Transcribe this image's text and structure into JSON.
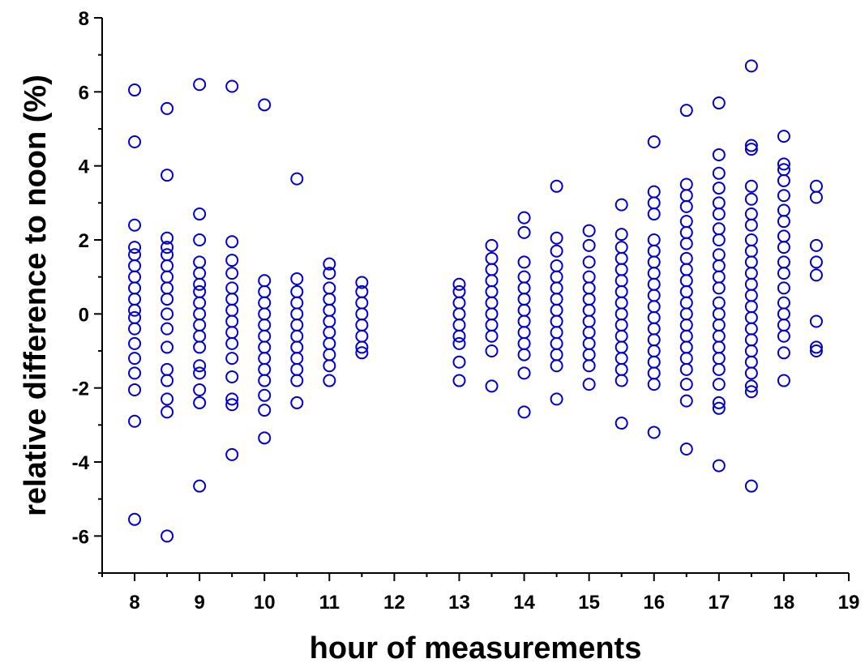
{
  "chart_data": {
    "type": "scatter",
    "title": "",
    "xlabel": "hour of measurements",
    "ylabel": "relative difference to noon (%)",
    "xlim": [
      7.5,
      19
    ],
    "ylim": [
      -7,
      8
    ],
    "x_ticks": [
      8,
      9,
      10,
      11,
      12,
      13,
      14,
      15,
      16,
      17,
      18,
      19
    ],
    "y_ticks": [
      -6,
      -4,
      -2,
      0,
      2,
      4,
      6,
      8
    ],
    "grid": false,
    "legend": "none",
    "marker": "open-circle",
    "color": "#0000CC",
    "series": [
      {
        "points": [
          [
            8,
            6.05
          ],
          [
            8,
            4.65
          ],
          [
            8,
            2.4
          ],
          [
            8,
            1.8
          ],
          [
            8,
            1.6
          ],
          [
            8,
            1.3
          ],
          [
            8,
            1.0
          ],
          [
            8,
            0.7
          ],
          [
            8,
            0.4
          ],
          [
            8,
            0.1
          ],
          [
            8,
            -0.1
          ],
          [
            8,
            -0.4
          ],
          [
            8,
            -0.8
          ],
          [
            8,
            -1.2
          ],
          [
            8,
            -1.6
          ],
          [
            8,
            -2.05
          ],
          [
            8,
            -2.9
          ],
          [
            8,
            -5.55
          ],
          [
            8.5,
            5.55
          ],
          [
            8.5,
            3.75
          ],
          [
            8.5,
            2.05
          ],
          [
            8.5,
            1.8
          ],
          [
            8.5,
            1.6
          ],
          [
            8.5,
            1.3
          ],
          [
            8.5,
            1.0
          ],
          [
            8.5,
            0.7
          ],
          [
            8.5,
            0.4
          ],
          [
            8.5,
            0.0
          ],
          [
            8.5,
            -0.4
          ],
          [
            8.5,
            -0.9
          ],
          [
            8.5,
            -1.5
          ],
          [
            8.5,
            -1.8
          ],
          [
            8.5,
            -2.3
          ],
          [
            8.5,
            -2.65
          ],
          [
            8.5,
            -6.0
          ],
          [
            9,
            6.2
          ],
          [
            9,
            2.7
          ],
          [
            9,
            2.0
          ],
          [
            9,
            1.4
          ],
          [
            9,
            1.1
          ],
          [
            9,
            0.8
          ],
          [
            9,
            0.6
          ],
          [
            9,
            0.3
          ],
          [
            9,
            0.0
          ],
          [
            9,
            -0.3
          ],
          [
            9,
            -0.6
          ],
          [
            9,
            -0.9
          ],
          [
            9,
            -1.4
          ],
          [
            9,
            -1.6
          ],
          [
            9,
            -2.05
          ],
          [
            9,
            -2.4
          ],
          [
            9,
            -4.65
          ],
          [
            9.5,
            6.15
          ],
          [
            9.5,
            1.95
          ],
          [
            9.5,
            1.45
          ],
          [
            9.5,
            1.1
          ],
          [
            9.5,
            0.7
          ],
          [
            9.5,
            0.4
          ],
          [
            9.5,
            0.1
          ],
          [
            9.5,
            -0.2
          ],
          [
            9.5,
            -0.5
          ],
          [
            9.5,
            -0.8
          ],
          [
            9.5,
            -1.2
          ],
          [
            9.5,
            -1.7
          ],
          [
            9.5,
            -2.3
          ],
          [
            9.5,
            -2.45
          ],
          [
            9.5,
            -3.8
          ],
          [
            10,
            5.65
          ],
          [
            10,
            0.9
          ],
          [
            10,
            0.6
          ],
          [
            10,
            0.3
          ],
          [
            10,
            0.0
          ],
          [
            10,
            -0.3
          ],
          [
            10,
            -0.6
          ],
          [
            10,
            -0.9
          ],
          [
            10,
            -1.2
          ],
          [
            10,
            -1.5
          ],
          [
            10,
            -1.8
          ],
          [
            10,
            -2.2
          ],
          [
            10,
            -2.6
          ],
          [
            10,
            -3.35
          ],
          [
            10.5,
            3.65
          ],
          [
            10.5,
            0.95
          ],
          [
            10.5,
            0.6
          ],
          [
            10.5,
            0.3
          ],
          [
            10.5,
            0.0
          ],
          [
            10.5,
            -0.3
          ],
          [
            10.5,
            -0.6
          ],
          [
            10.5,
            -0.9
          ],
          [
            10.5,
            -1.2
          ],
          [
            10.5,
            -1.5
          ],
          [
            10.5,
            -1.8
          ],
          [
            10.5,
            -2.4
          ],
          [
            11,
            1.35
          ],
          [
            11,
            1.1
          ],
          [
            11,
            0.7
          ],
          [
            11,
            0.4
          ],
          [
            11,
            0.1
          ],
          [
            11,
            -0.2
          ],
          [
            11,
            -0.5
          ],
          [
            11,
            -0.8
          ],
          [
            11,
            -1.1
          ],
          [
            11,
            -1.4
          ],
          [
            11,
            -1.8
          ],
          [
            11.5,
            0.85
          ],
          [
            11.5,
            0.6
          ],
          [
            11.5,
            0.3
          ],
          [
            11.5,
            0.0
          ],
          [
            11.5,
            -0.3
          ],
          [
            11.5,
            -0.6
          ],
          [
            11.5,
            -0.9
          ],
          [
            11.5,
            -1.05
          ],
          [
            13,
            0.8
          ],
          [
            13,
            0.6
          ],
          [
            13,
            0.3
          ],
          [
            13,
            0.0
          ],
          [
            13,
            -0.3
          ],
          [
            13,
            -0.6
          ],
          [
            13,
            -0.8
          ],
          [
            13,
            -1.3
          ],
          [
            13,
            -1.8
          ],
          [
            13.5,
            1.85
          ],
          [
            13.5,
            1.5
          ],
          [
            13.5,
            1.2
          ],
          [
            13.5,
            0.9
          ],
          [
            13.5,
            0.6
          ],
          [
            13.5,
            0.3
          ],
          [
            13.5,
            0.0
          ],
          [
            13.5,
            -0.3
          ],
          [
            13.5,
            -0.6
          ],
          [
            13.5,
            -1.0
          ],
          [
            13.5,
            -1.95
          ],
          [
            14,
            2.6
          ],
          [
            14,
            2.2
          ],
          [
            14,
            1.4
          ],
          [
            14,
            1.0
          ],
          [
            14,
            0.7
          ],
          [
            14,
            0.4
          ],
          [
            14,
            0.1
          ],
          [
            14,
            -0.2
          ],
          [
            14,
            -0.5
          ],
          [
            14,
            -0.8
          ],
          [
            14,
            -1.1
          ],
          [
            14,
            -1.6
          ],
          [
            14,
            -2.65
          ],
          [
            14.5,
            3.45
          ],
          [
            14.5,
            2.05
          ],
          [
            14.5,
            1.7
          ],
          [
            14.5,
            1.3
          ],
          [
            14.5,
            1.0
          ],
          [
            14.5,
            0.7
          ],
          [
            14.5,
            0.4
          ],
          [
            14.5,
            0.1
          ],
          [
            14.5,
            -0.2
          ],
          [
            14.5,
            -0.5
          ],
          [
            14.5,
            -0.8
          ],
          [
            14.5,
            -1.1
          ],
          [
            14.5,
            -1.4
          ],
          [
            14.5,
            -2.3
          ],
          [
            15,
            2.25
          ],
          [
            15,
            1.85
          ],
          [
            15,
            1.4
          ],
          [
            15,
            1.0
          ],
          [
            15,
            0.7
          ],
          [
            15,
            0.4
          ],
          [
            15,
            0.1
          ],
          [
            15,
            -0.2
          ],
          [
            15,
            -0.5
          ],
          [
            15,
            -0.8
          ],
          [
            15,
            -1.1
          ],
          [
            15,
            -1.4
          ],
          [
            15,
            -1.9
          ],
          [
            15.5,
            2.95
          ],
          [
            15.5,
            2.15
          ],
          [
            15.5,
            1.8
          ],
          [
            15.5,
            1.5
          ],
          [
            15.5,
            1.2
          ],
          [
            15.5,
            0.9
          ],
          [
            15.5,
            0.6
          ],
          [
            15.5,
            0.3
          ],
          [
            15.5,
            0.0
          ],
          [
            15.5,
            -0.3
          ],
          [
            15.5,
            -0.6
          ],
          [
            15.5,
            -0.9
          ],
          [
            15.5,
            -1.2
          ],
          [
            15.5,
            -1.5
          ],
          [
            15.5,
            -1.8
          ],
          [
            15.5,
            -2.95
          ],
          [
            16,
            4.65
          ],
          [
            16,
            3.3
          ],
          [
            16,
            3.0
          ],
          [
            16,
            2.7
          ],
          [
            16,
            2.0
          ],
          [
            16,
            1.7
          ],
          [
            16,
            1.4
          ],
          [
            16,
            1.1
          ],
          [
            16,
            0.8
          ],
          [
            16,
            0.5
          ],
          [
            16,
            0.2
          ],
          [
            16,
            -0.1
          ],
          [
            16,
            -0.4
          ],
          [
            16,
            -0.7
          ],
          [
            16,
            -1.0
          ],
          [
            16,
            -1.3
          ],
          [
            16,
            -1.6
          ],
          [
            16,
            -1.9
          ],
          [
            16,
            -3.2
          ],
          [
            16.5,
            5.5
          ],
          [
            16.5,
            3.5
          ],
          [
            16.5,
            3.2
          ],
          [
            16.5,
            2.9
          ],
          [
            16.5,
            2.5
          ],
          [
            16.5,
            2.2
          ],
          [
            16.5,
            1.9
          ],
          [
            16.5,
            1.5
          ],
          [
            16.5,
            1.2
          ],
          [
            16.5,
            0.9
          ],
          [
            16.5,
            0.6
          ],
          [
            16.5,
            0.3
          ],
          [
            16.5,
            0.0
          ],
          [
            16.5,
            -0.3
          ],
          [
            16.5,
            -0.6
          ],
          [
            16.5,
            -0.9
          ],
          [
            16.5,
            -1.2
          ],
          [
            16.5,
            -1.5
          ],
          [
            16.5,
            -1.9
          ],
          [
            16.5,
            -2.35
          ],
          [
            16.5,
            -3.65
          ],
          [
            17,
            5.7
          ],
          [
            17,
            4.3
          ],
          [
            17,
            3.8
          ],
          [
            17,
            3.4
          ],
          [
            17,
            3.0
          ],
          [
            17,
            2.7
          ],
          [
            17,
            2.3
          ],
          [
            17,
            2.0
          ],
          [
            17,
            1.6
          ],
          [
            17,
            1.3
          ],
          [
            17,
            1.0
          ],
          [
            17,
            0.7
          ],
          [
            17,
            0.3
          ],
          [
            17,
            0.0
          ],
          [
            17,
            -0.3
          ],
          [
            17,
            -0.6
          ],
          [
            17,
            -0.9
          ],
          [
            17,
            -1.2
          ],
          [
            17,
            -1.5
          ],
          [
            17,
            -1.9
          ],
          [
            17,
            -2.4
          ],
          [
            17,
            -2.55
          ],
          [
            17,
            -4.1
          ],
          [
            17.5,
            6.7
          ],
          [
            17.5,
            4.55
          ],
          [
            17.5,
            4.45
          ],
          [
            17.5,
            3.45
          ],
          [
            17.5,
            3.1
          ],
          [
            17.5,
            2.7
          ],
          [
            17.5,
            2.4
          ],
          [
            17.5,
            2.0
          ],
          [
            17.5,
            1.7
          ],
          [
            17.5,
            1.4
          ],
          [
            17.5,
            1.1
          ],
          [
            17.5,
            0.8
          ],
          [
            17.5,
            0.5
          ],
          [
            17.5,
            0.2
          ],
          [
            17.5,
            -0.1
          ],
          [
            17.5,
            -0.4
          ],
          [
            17.5,
            -0.7
          ],
          [
            17.5,
            -1.0
          ],
          [
            17.5,
            -1.3
          ],
          [
            17.5,
            -1.6
          ],
          [
            17.5,
            -1.95
          ],
          [
            17.5,
            -2.1
          ],
          [
            17.5,
            -4.65
          ],
          [
            18,
            4.8
          ],
          [
            18,
            4.05
          ],
          [
            18,
            3.9
          ],
          [
            18,
            3.6
          ],
          [
            18,
            3.2
          ],
          [
            18,
            2.8
          ],
          [
            18,
            2.5
          ],
          [
            18,
            2.1
          ],
          [
            18,
            1.8
          ],
          [
            18,
            1.4
          ],
          [
            18,
            1.1
          ],
          [
            18,
            0.7
          ],
          [
            18,
            0.3
          ],
          [
            18,
            0.0
          ],
          [
            18,
            -0.3
          ],
          [
            18,
            -0.6
          ],
          [
            18,
            -1.05
          ],
          [
            18,
            -1.8
          ],
          [
            18.5,
            3.45
          ],
          [
            18.5,
            3.15
          ],
          [
            18.5,
            1.85
          ],
          [
            18.5,
            1.4
          ],
          [
            18.5,
            1.05
          ],
          [
            18.5,
            -0.2
          ],
          [
            18.5,
            -0.9
          ],
          [
            18.5,
            -1.0
          ]
        ]
      }
    ]
  }
}
